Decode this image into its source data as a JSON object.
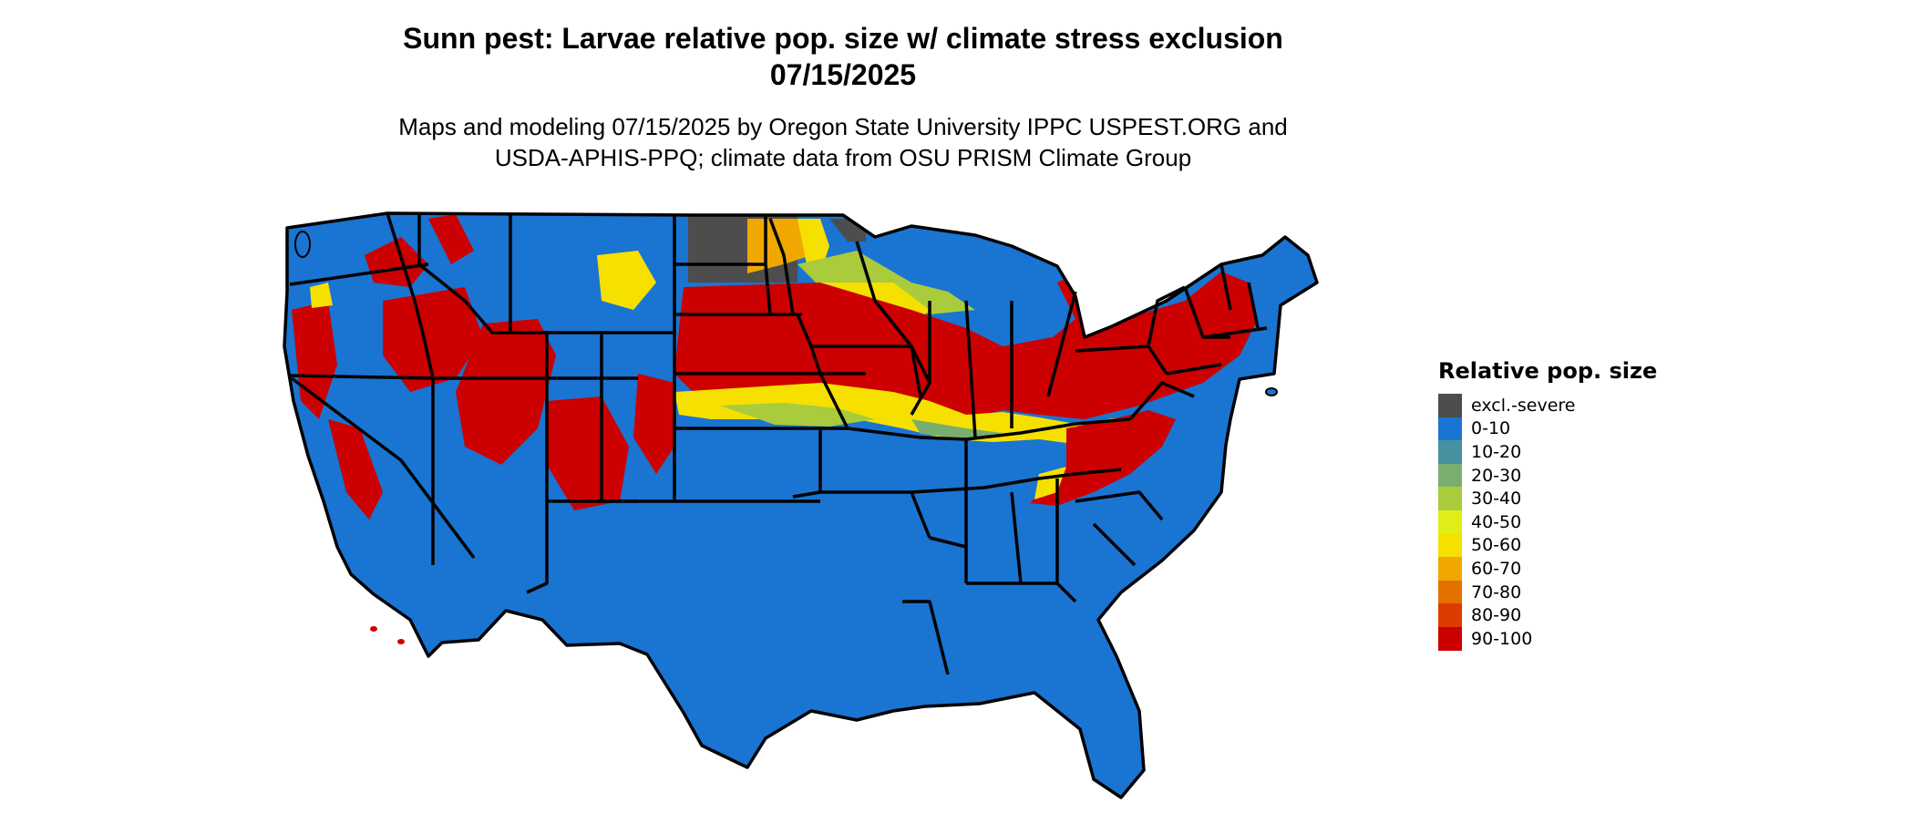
{
  "title": {
    "line1": "Sunn pest: Larvae relative pop. size w/ climate stress exclusion",
    "line2": "07/15/2025"
  },
  "subtitle": {
    "line1": "Maps and modeling 07/15/2025 by Oregon State University IPPC USPEST.ORG and",
    "line2": "USDA-APHIS-PPQ; climate data from OSU PRISM Climate Group"
  },
  "legend": {
    "title": "Relative pop. size",
    "items": [
      {
        "label": "excl.-severe",
        "color": "#4d4d4d"
      },
      {
        "label": "0-10",
        "color": "#1a74d2"
      },
      {
        "label": "10-20",
        "color": "#4690a0"
      },
      {
        "label": "20-30",
        "color": "#7aae6e"
      },
      {
        "label": "30-40",
        "color": "#a9cb3c"
      },
      {
        "label": "40-50",
        "color": "#dfee16"
      },
      {
        "label": "50-60",
        "color": "#f6e000"
      },
      {
        "label": "60-70",
        "color": "#f0a800"
      },
      {
        "label": "70-80",
        "color": "#e47000"
      },
      {
        "label": "80-90",
        "color": "#dc3c00"
      },
      {
        "label": "90-100",
        "color": "#cc0000"
      }
    ]
  },
  "colors": {
    "border": "#000000",
    "background": "#ffffff"
  }
}
